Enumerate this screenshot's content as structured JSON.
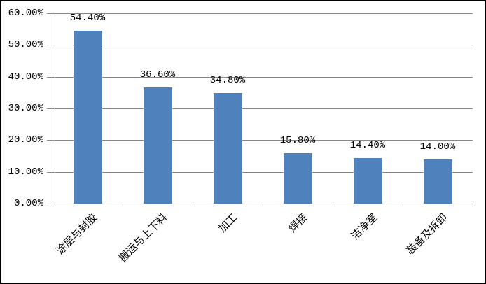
{
  "chart_data": {
    "type": "bar",
    "title": "",
    "xlabel": "",
    "ylabel": "",
    "categories": [
      "涂层与封胶",
      "搬运与上下料",
      "加工",
      "焊接",
      "洁净室",
      "装备及拆卸"
    ],
    "values": [
      54.4,
      36.6,
      34.8,
      15.8,
      14.4,
      14.0
    ],
    "value_labels": [
      "54.40%",
      "36.60%",
      "34.80%",
      "15.80%",
      "14.40%",
      "14.00%"
    ],
    "y_tick_labels": [
      "0.00%",
      "10.00%",
      "20.00%",
      "30.00%",
      "40.00%",
      "50.00%",
      "60.00%"
    ],
    "ylim": [
      0,
      60
    ],
    "y_step": 10,
    "grid": true,
    "legend": false,
    "colors": {
      "bar": "#4F81BD",
      "gridline": "#878787",
      "axis": "#878787",
      "text": "#000000",
      "frame_border": "#000000",
      "background": "#FFFFFF"
    }
  }
}
